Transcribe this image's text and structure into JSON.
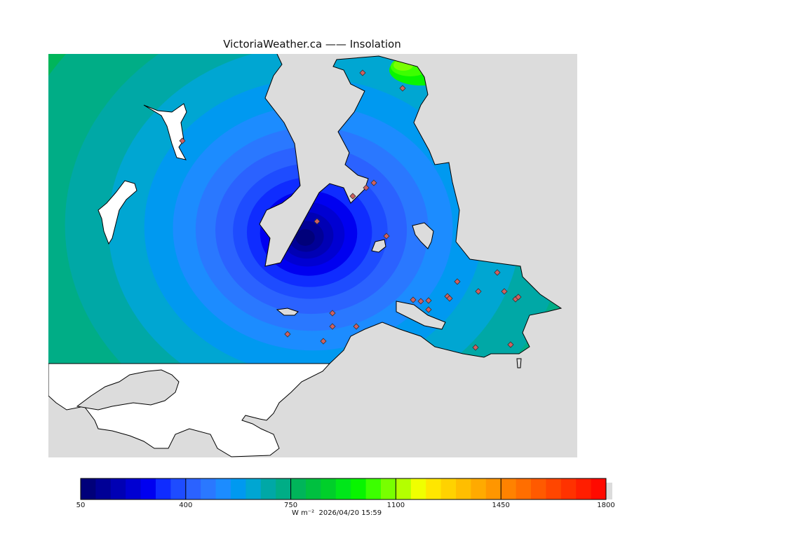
{
  "title": "VictoriaWeather.ca  —— Insolation",
  "colorbar": {
    "ticks": [
      "50",
      "400",
      "750",
      "1100",
      "1450",
      "1800"
    ],
    "units": "W m⁻²",
    "timestamp": "2026/04/20 15:59",
    "colors": [
      "#00007a",
      "#000096",
      "#0000b4",
      "#0000d2",
      "#0000f0",
      "#0f2cff",
      "#1e4cff",
      "#2b62ff",
      "#2a78ff",
      "#1c8cff",
      "#0099f0",
      "#00a6d2",
      "#00a8a6",
      "#00ad86",
      "#00b55a",
      "#00c040",
      "#00cf2a",
      "#00e61a",
      "#08f500",
      "#3cff00",
      "#78ff00",
      "#b4ff00",
      "#f0ff00",
      "#ffe600",
      "#ffd200",
      "#ffbe00",
      "#ffaa00",
      "#ff9600",
      "#ff8200",
      "#ff6e00",
      "#ff5a00",
      "#ff4600",
      "#ff3200",
      "#ff1e00",
      "#ff0a00"
    ]
  },
  "colors": {
    "land_background": "#dcdcdc",
    "water": "#ffffff",
    "station_marker": "#d06060"
  },
  "station_count": 27
}
